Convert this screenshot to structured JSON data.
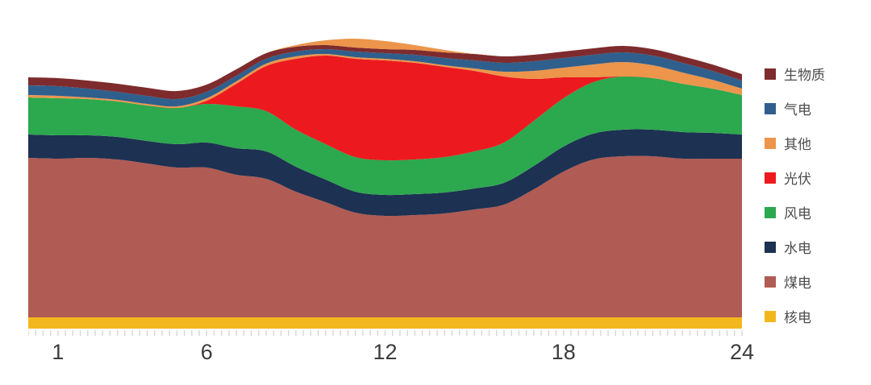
{
  "chart_data": {
    "type": "area",
    "stacked": true,
    "title": "",
    "xlabel": "",
    "ylabel": "",
    "x_axis": {
      "range": [
        0,
        24
      ],
      "ticks": [
        1,
        6,
        12,
        18,
        24
      ],
      "minor_tick_interval_hours": 0.25
    },
    "y_axis": {
      "visible": false,
      "units": "relative (no scale shown)",
      "baseline": 0,
      "max_total": 362
    },
    "x": [
      0,
      1,
      2,
      3,
      4,
      5,
      6,
      7,
      8,
      9,
      10,
      11,
      12,
      13,
      14,
      15,
      16,
      17,
      18,
      19,
      20,
      21,
      22,
      23,
      24
    ],
    "series": [
      {
        "key": "nuclear",
        "label": "核电",
        "color": "#F3B71E",
        "values": [
          14,
          14,
          14,
          14,
          14,
          14,
          14,
          14,
          14,
          14,
          14,
          14,
          14,
          14,
          14,
          14,
          14,
          14,
          14,
          14,
          14,
          14,
          14,
          14,
          14
        ]
      },
      {
        "key": "coal",
        "label": "煤电",
        "color": "#B05B53",
        "values": [
          198,
          197,
          198,
          196,
          191,
          186,
          186,
          177,
          172,
          156,
          143,
          130,
          126,
          127,
          129,
          134,
          140,
          159,
          181,
          196,
          200,
          200,
          197,
          197,
          197
        ]
      },
      {
        "key": "hydro",
        "label": "水电",
        "color": "#1D3152",
        "values": [
          29,
          29,
          28,
          28,
          28,
          29,
          31,
          33,
          34,
          31,
          28,
          26,
          26,
          26,
          26,
          26,
          27,
          29,
          31,
          32,
          33,
          33,
          33,
          32,
          30
        ]
      },
      {
        "key": "wind",
        "label": "风电",
        "color": "#2CA84E",
        "values": [
          46,
          46,
          45,
          44,
          44,
          45,
          48,
          52,
          50,
          46,
          44,
          43,
          43,
          43,
          44,
          46,
          50,
          56,
          60,
          64,
          66,
          64,
          60,
          55,
          49
        ]
      },
      {
        "key": "solar",
        "label": "光伏",
        "color": "#EC1A1E",
        "values": [
          0,
          0,
          0,
          0,
          0,
          0,
          4,
          28,
          56,
          88,
          110,
          122,
          124,
          120,
          112,
          100,
          82,
          52,
          26,
          6,
          0,
          0,
          0,
          0,
          0
        ]
      },
      {
        "key": "other",
        "label": "其他",
        "color": "#EC954B",
        "values": [
          3,
          3,
          2,
          2,
          2,
          2,
          3,
          3,
          3,
          3,
          2,
          2,
          2,
          2,
          2,
          3,
          6,
          10,
          12,
          16,
          18,
          16,
          14,
          11,
          8
        ]
      },
      {
        "key": "gas",
        "label": "气电",
        "color": "#2F5F8C",
        "values": [
          12,
          12,
          11,
          10,
          10,
          9,
          8,
          7,
          6,
          6,
          6,
          7,
          7,
          8,
          9,
          10,
          11,
          12,
          12,
          12,
          12,
          12,
          12,
          11,
          10
        ]
      },
      {
        "key": "biomass",
        "label": "生物质",
        "color": "#7E2B2D",
        "values": [
          10,
          10,
          10,
          10,
          10,
          10,
          9,
          8,
          7,
          6,
          5,
          5,
          5,
          6,
          7,
          8,
          8,
          8,
          8,
          8,
          8,
          8,
          8,
          8,
          8
        ]
      },
      {
        "key": "other-midday-cap",
        "label": "其他",
        "color": "#EC954B",
        "overlay": true,
        "note": "midday portion of 其他 drawn above the top of the stack",
        "values": [
          0,
          0,
          0,
          0,
          0,
          0,
          0,
          0,
          0,
          2,
          6,
          11,
          10,
          6,
          3,
          0,
          0,
          0,
          0,
          0,
          0,
          0,
          0,
          0,
          0
        ]
      }
    ],
    "legend": {
      "position": "right",
      "items": [
        {
          "key": "biomass",
          "label": "生物质",
          "color": "#7E2B2D"
        },
        {
          "key": "gas",
          "label": "气电",
          "color": "#2F5F8C"
        },
        {
          "key": "other",
          "label": "其他",
          "color": "#EC954B"
        },
        {
          "key": "solar",
          "label": "光伏",
          "color": "#EC1A1E"
        },
        {
          "key": "wind",
          "label": "风电",
          "color": "#2CA84E"
        },
        {
          "key": "hydro",
          "label": "水电",
          "color": "#1D3152"
        },
        {
          "key": "coal",
          "label": "煤电",
          "color": "#B05B53"
        },
        {
          "key": "nuclear",
          "label": "核电",
          "color": "#F3B71E"
        }
      ]
    },
    "axis_style": {
      "tick_color": "#D6D6D6",
      "tick_label_color": "#3C3C3C"
    }
  }
}
